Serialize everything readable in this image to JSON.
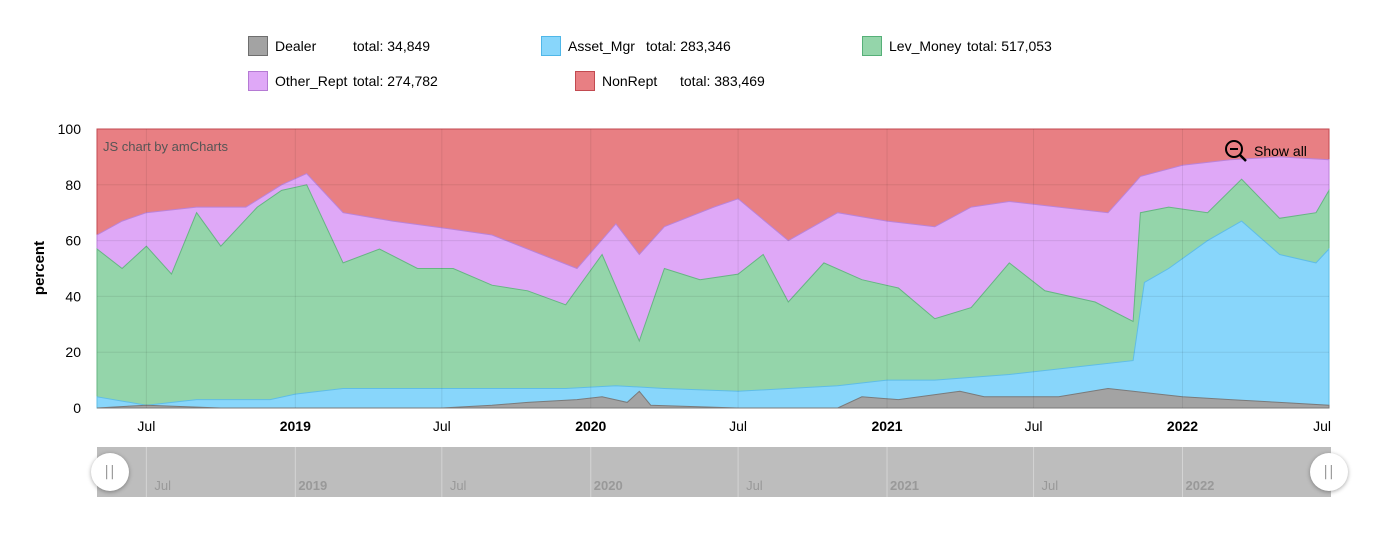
{
  "legend": [
    {
      "key": "dealer",
      "name": "Dealer",
      "total_text": "total: 34,849",
      "color": "#a3a3a3",
      "border": "#6e6e6e"
    },
    {
      "key": "asset",
      "name": "Asset_Mgr",
      "total_text": "total: 283,346",
      "color": "#88d6fb",
      "border": "#4fb7e8"
    },
    {
      "key": "lev",
      "name": "Lev_Money",
      "total_text": "total: 517,053",
      "color": "#94d5aa",
      "border": "#56b078"
    },
    {
      "key": "other",
      "name": "Other_Rept",
      "total_text": "total: 274,782",
      "color": "#dfa8f7",
      "border": "#b57ad4"
    },
    {
      "key": "nonrept",
      "name": "NonRept",
      "total_text": "total: 383,469",
      "color": "#e87f83",
      "border": "#c24a50"
    }
  ],
  "credit": "JS chart by amCharts",
  "show_all_label": "Show all",
  "chart_data": {
    "type": "area",
    "stacked": true,
    "ylabel": "percent",
    "ylim": [
      0,
      100
    ],
    "yticks": [
      0,
      20,
      40,
      60,
      80,
      100
    ],
    "xlim": [
      "2018-05-01",
      "2022-07-01"
    ],
    "xticks": [
      {
        "date": "2018-07-01",
        "label": "Jul",
        "year": false
      },
      {
        "date": "2019-01-01",
        "label": "2019",
        "year": true
      },
      {
        "date": "2019-07-01",
        "label": "Jul",
        "year": false
      },
      {
        "date": "2020-01-01",
        "label": "2020",
        "year": true
      },
      {
        "date": "2020-07-01",
        "label": "Jul",
        "year": false
      },
      {
        "date": "2021-01-01",
        "label": "2021",
        "year": true
      },
      {
        "date": "2021-07-01",
        "label": "Jul",
        "year": false
      },
      {
        "date": "2022-01-01",
        "label": "2022",
        "year": true
      },
      {
        "date": "2022-07-01",
        "label": "Jul",
        "year": false
      }
    ],
    "grid": true,
    "series": [
      {
        "name": "Dealer",
        "color": "#a3a3a3",
        "stroke": "#7a7a7a",
        "points": [
          [
            "2018-05-01",
            0
          ],
          [
            "2018-07-01",
            1
          ],
          [
            "2018-10-01",
            0
          ],
          [
            "2019-01-01",
            0
          ],
          [
            "2019-07-01",
            0
          ],
          [
            "2019-09-01",
            1
          ],
          [
            "2019-10-15",
            2
          ],
          [
            "2019-12-15",
            3
          ],
          [
            "2020-01-15",
            4
          ],
          [
            "2020-02-15",
            2
          ],
          [
            "2020-03-01",
            6
          ],
          [
            "2020-03-15",
            1
          ],
          [
            "2020-07-01",
            0
          ],
          [
            "2020-11-01",
            0
          ],
          [
            "2020-12-01",
            4
          ],
          [
            "2021-01-15",
            3
          ],
          [
            "2021-04-01",
            6
          ],
          [
            "2021-05-01",
            4
          ],
          [
            "2021-08-01",
            4
          ],
          [
            "2021-10-01",
            7
          ],
          [
            "2021-11-01",
            6
          ],
          [
            "2022-01-01",
            4
          ],
          [
            "2022-03-01",
            3
          ],
          [
            "2022-05-01",
            2
          ],
          [
            "2022-07-01",
            1
          ]
        ]
      },
      {
        "name": "Asset_Mgr",
        "color": "#88d6fb",
        "stroke": "#5fbde6",
        "points": [
          [
            "2018-05-01",
            4
          ],
          [
            "2018-07-01",
            1
          ],
          [
            "2018-09-01",
            3
          ],
          [
            "2018-12-01",
            3
          ],
          [
            "2019-01-01",
            5
          ],
          [
            "2019-03-01",
            7
          ],
          [
            "2019-06-01",
            7
          ],
          [
            "2019-09-01",
            7
          ],
          [
            "2019-12-01",
            7
          ],
          [
            "2020-02-01",
            8
          ],
          [
            "2020-04-01",
            7
          ],
          [
            "2020-07-01",
            6
          ],
          [
            "2020-09-01",
            7
          ],
          [
            "2020-11-01",
            8
          ],
          [
            "2021-01-01",
            10
          ],
          [
            "2021-03-01",
            10
          ],
          [
            "2021-06-01",
            12
          ],
          [
            "2021-09-01",
            15
          ],
          [
            "2021-11-01",
            17
          ],
          [
            "2021-11-15",
            45
          ],
          [
            "2021-12-15",
            50
          ],
          [
            "2022-02-01",
            60
          ],
          [
            "2022-03-15",
            67
          ],
          [
            "2022-05-01",
            55
          ],
          [
            "2022-06-15",
            52
          ],
          [
            "2022-07-01",
            57
          ]
        ]
      },
      {
        "name": "Lev_Money",
        "color": "#94d5aa",
        "stroke": "#66b583",
        "points": [
          [
            "2018-05-01",
            57
          ],
          [
            "2018-06-01",
            50
          ],
          [
            "2018-07-01",
            58
          ],
          [
            "2018-08-01",
            48
          ],
          [
            "2018-09-01",
            70
          ],
          [
            "2018-10-01",
            58
          ],
          [
            "2018-11-15",
            72
          ],
          [
            "2018-12-15",
            78
          ],
          [
            "2019-01-15",
            80
          ],
          [
            "2019-03-01",
            52
          ],
          [
            "2019-04-15",
            57
          ],
          [
            "2019-06-01",
            50
          ],
          [
            "2019-07-15",
            50
          ],
          [
            "2019-09-01",
            44
          ],
          [
            "2019-10-15",
            42
          ],
          [
            "2019-12-01",
            37
          ],
          [
            "2020-01-15",
            55
          ],
          [
            "2020-03-01",
            24
          ],
          [
            "2020-04-01",
            50
          ],
          [
            "2020-05-15",
            46
          ],
          [
            "2020-07-01",
            48
          ],
          [
            "2020-08-01",
            55
          ],
          [
            "2020-09-01",
            38
          ],
          [
            "2020-10-15",
            52
          ],
          [
            "2020-12-01",
            46
          ],
          [
            "2021-01-15",
            43
          ],
          [
            "2021-03-01",
            32
          ],
          [
            "2021-04-15",
            36
          ],
          [
            "2021-06-01",
            52
          ],
          [
            "2021-07-15",
            42
          ],
          [
            "2021-09-15",
            38
          ],
          [
            "2021-11-01",
            31
          ],
          [
            "2021-11-10",
            70
          ],
          [
            "2021-12-15",
            72
          ],
          [
            "2022-02-01",
            70
          ],
          [
            "2022-03-15",
            82
          ],
          [
            "2022-05-01",
            68
          ],
          [
            "2022-06-15",
            70
          ],
          [
            "2022-07-01",
            78
          ]
        ]
      },
      {
        "name": "Other_Rept",
        "color": "#dfa8f7",
        "stroke": "#bb82d8",
        "points": [
          [
            "2018-05-01",
            62
          ],
          [
            "2018-06-01",
            67
          ],
          [
            "2018-07-01",
            70
          ],
          [
            "2018-09-01",
            72
          ],
          [
            "2018-11-01",
            72
          ],
          [
            "2018-12-15",
            80
          ],
          [
            "2019-01-15",
            84
          ],
          [
            "2019-03-01",
            70
          ],
          [
            "2019-05-01",
            67
          ],
          [
            "2019-07-15",
            64
          ],
          [
            "2019-09-01",
            62
          ],
          [
            "2019-11-01",
            55
          ],
          [
            "2019-12-15",
            50
          ],
          [
            "2020-02-01",
            66
          ],
          [
            "2020-03-01",
            55
          ],
          [
            "2020-04-01",
            65
          ],
          [
            "2020-06-01",
            72
          ],
          [
            "2020-07-01",
            75
          ],
          [
            "2020-09-01",
            60
          ],
          [
            "2020-11-01",
            70
          ],
          [
            "2021-01-01",
            67
          ],
          [
            "2021-03-01",
            65
          ],
          [
            "2021-04-15",
            72
          ],
          [
            "2021-06-01",
            74
          ],
          [
            "2021-08-01",
            72
          ],
          [
            "2021-10-01",
            70
          ],
          [
            "2021-11-01",
            80
          ],
          [
            "2021-11-10",
            83
          ],
          [
            "2022-01-01",
            87
          ],
          [
            "2022-03-01",
            89
          ],
          [
            "2022-05-01",
            90
          ],
          [
            "2022-07-01",
            89
          ]
        ]
      }
    ]
  }
}
